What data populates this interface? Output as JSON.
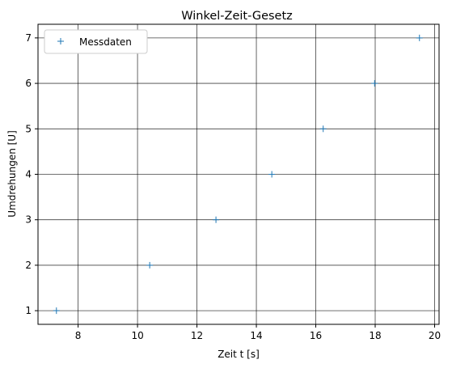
{
  "chart_data": {
    "type": "scatter",
    "title": "Winkel-Zeit-Gesetz",
    "xlabel": "Zeit t [s]",
    "ylabel": "Umdrehungen [U]",
    "xlim": [
      6.65,
      20.15
    ],
    "ylim": [
      0.7,
      7.3
    ],
    "xticks": [
      8,
      10,
      12,
      14,
      16,
      18,
      20
    ],
    "yticks": [
      1,
      2,
      3,
      4,
      5,
      6,
      7
    ],
    "grid": true,
    "grid_color": "#000000",
    "legend_placement": "upper-left",
    "series": [
      {
        "name": "Messdaten",
        "marker": "+",
        "color": "#1f77b4",
        "x": [
          7.27,
          10.41,
          12.64,
          14.52,
          16.25,
          17.98,
          19.49
        ],
        "y": [
          1,
          2,
          3,
          4,
          5,
          6,
          7
        ]
      }
    ]
  }
}
